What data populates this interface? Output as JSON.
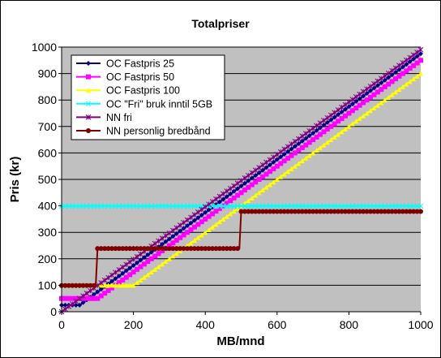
{
  "chart_data": {
    "type": "line",
    "title": "Totalpriser",
    "xlabel": "MB/mnd",
    "ylabel": "Pris (kr)",
    "xlim": [
      0,
      1000
    ],
    "ylim": [
      0,
      1000
    ],
    "x_ticks": [
      0,
      200,
      400,
      600,
      800,
      1000
    ],
    "y_ticks": [
      0,
      100,
      200,
      300,
      400,
      500,
      600,
      700,
      800,
      900,
      1000
    ],
    "grid": "horizontal",
    "plot_background": "#c0c0c0",
    "legend_position": "top-left",
    "series": [
      {
        "name": "OC Fastpris 25",
        "color": "#000080",
        "marker": "diamond",
        "points": [
          [
            0,
            25
          ],
          [
            50,
            25
          ],
          [
            1000,
            975
          ]
        ]
      },
      {
        "name": "OC Fastpris 50",
        "color": "#ff00ff",
        "marker": "square",
        "points": [
          [
            0,
            50
          ],
          [
            100,
            50
          ],
          [
            1000,
            950
          ]
        ]
      },
      {
        "name": "OC Fastpris 100",
        "color": "#ffff00",
        "marker": "triangle",
        "points": [
          [
            0,
            100
          ],
          [
            200,
            100
          ],
          [
            1000,
            900
          ]
        ]
      },
      {
        "name": "OC \"Fri\" bruk inntil 5GB",
        "color": "#00ffff",
        "marker": "x",
        "points": [
          [
            0,
            399
          ],
          [
            1000,
            399
          ]
        ]
      },
      {
        "name": "NN fri",
        "color": "#800080",
        "marker": "star",
        "points": [
          [
            0,
            0
          ],
          [
            1000,
            990
          ]
        ]
      },
      {
        "name": "NN personlig bredbånd",
        "color": "#800000",
        "marker": "circle",
        "points": [
          [
            0,
            99
          ],
          [
            95,
            99
          ],
          [
            100,
            239
          ],
          [
            495,
            239
          ],
          [
            500,
            379
          ],
          [
            1000,
            379
          ]
        ]
      }
    ]
  }
}
